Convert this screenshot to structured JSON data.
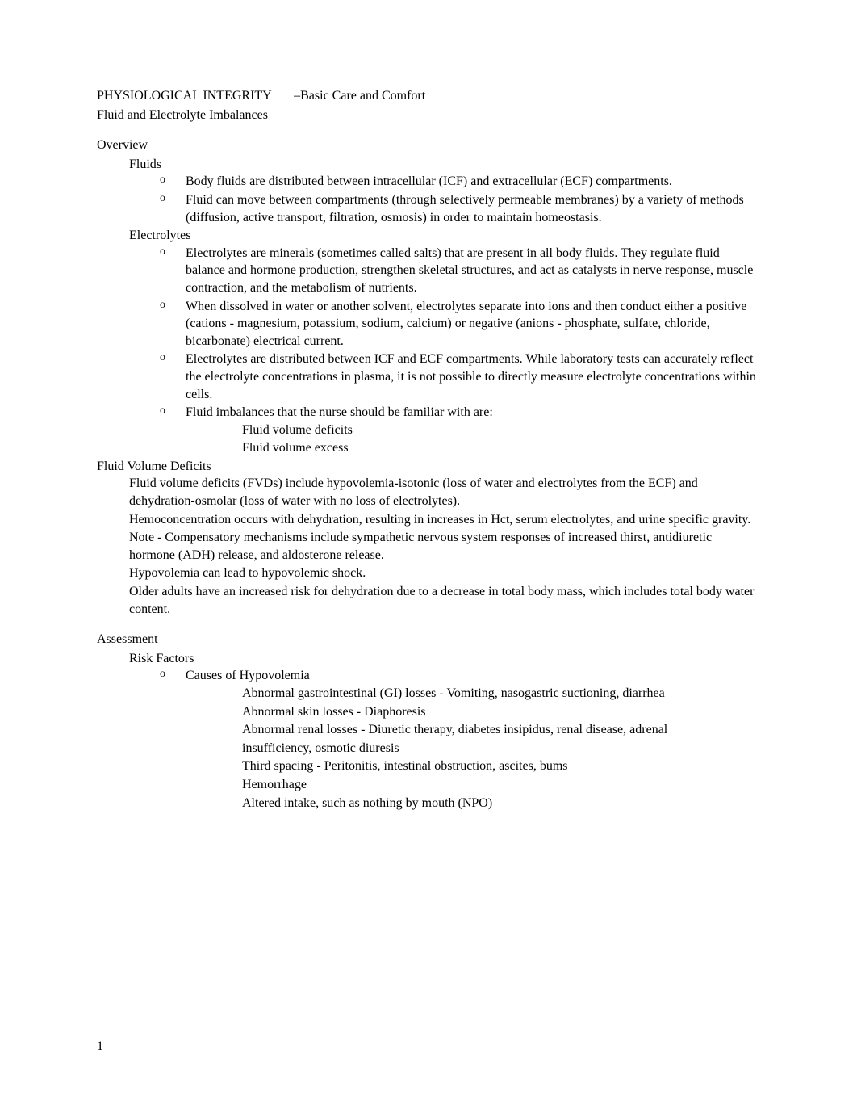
{
  "header": {
    "line1_part1": "PHYSIOLOGICAL INTEGRITY",
    "line1_part2": "–Basic Care and Comfort",
    "line2": "Fluid and Electrolyte Imbalances"
  },
  "overview": {
    "title": "Overview",
    "items": [
      {
        "label": "Fluids",
        "sub": [
          "Body fluids are distributed between intracellular (ICF) and extracellular (ECF) compartments.",
          "Fluid can move between compartments (through selectively permeable membranes) by a variety of methods (diffusion, active transport, filtration, osmosis) in order to maintain homeostasis."
        ]
      },
      {
        "label": "Electrolytes",
        "sub": [
          "Electrolytes are minerals (sometimes called salts) that are present in all body fluids. They regulate fluid balance and hormone production, strengthen skeletal structures, and act as catalysts in nerve response, muscle contraction, and the metabolism of nutrients.",
          "When dissolved in water or another solvent, electrolytes separate into ions and then conduct either a positive (cations - magnesium, potassium, sodium, calcium) or negative (anions - phosphate, sulfate, chloride, bicarbonate) electrical current.",
          "Electrolytes are distributed between ICF and ECF compartments. While laboratory tests can accurately reflect the electrolyte concentrations in plasma, it is not possible to directly measure electrolyte concentrations within cells.",
          "Fluid imbalances that the nurse should be familiar with are:"
        ],
        "subsub": [
          "Fluid volume deficits",
          "Fluid volume excess"
        ]
      }
    ]
  },
  "fvd": {
    "title": "Fluid Volume Deficits",
    "items": [
      "Fluid volume deficits (FVDs) include hypovolemia-isotonic (loss of water and electrolytes from the ECF) and dehydration-osmolar (loss of water with no loss of electrolytes).",
      "Hemoconcentration occurs with dehydration, resulting in increases in Hct, serum electrolytes, and urine specific gravity.",
      "Note - Compensatory mechanisms include sympathetic nervous system responses of increased thirst, antidiuretic hormone (ADH) release, and aldosterone release.",
      "Hypovolemia can lead to hypovolemic shock.",
      "Older adults have an increased risk for dehydration due to a decrease in total body mass, which includes total body water content."
    ]
  },
  "assessment": {
    "title": "Assessment",
    "items": [
      {
        "label": "Risk Factors",
        "sub": [
          {
            "label": "Causes of Hypovolemia",
            "subsub": [
              "Abnormal gastrointestinal (GI) losses - Vomiting, nasogastric suctioning, diarrhea",
              "Abnormal skin losses - Diaphoresis",
              "Abnormal renal losses - Diuretic therapy, diabetes insipidus, renal disease, adrenal",
              "insufficiency, osmotic diuresis",
              "Third spacing - Peritonitis, intestinal obstruction, ascites, bums",
              "Hemorrhage",
              "Altered intake, such as nothing by mouth (NPO)"
            ]
          }
        ]
      }
    ]
  },
  "page_number": "1"
}
